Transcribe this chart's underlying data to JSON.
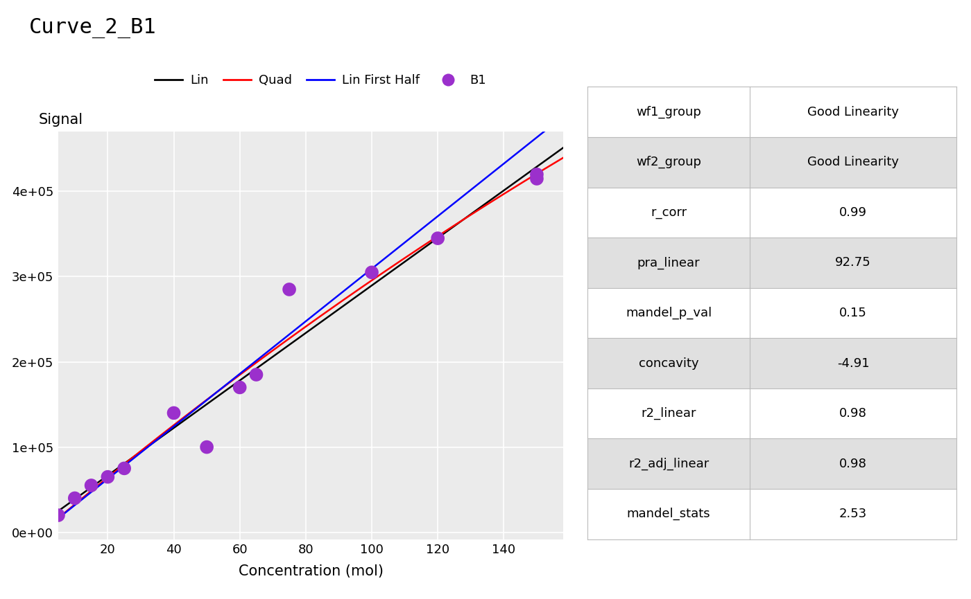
{
  "title": "Curve_2_B1",
  "xlabel": "Concentration (mol)",
  "ylabel": "Signal",
  "point_color": "#9B30CC",
  "point_size": 200,
  "concentrations": [
    5,
    10,
    15,
    20,
    25,
    40,
    50,
    60,
    65,
    75,
    100,
    120,
    150,
    150
  ],
  "signals": [
    20000,
    40000,
    55000,
    65000,
    75000,
    140000,
    100000,
    170000,
    185000,
    285000,
    305000,
    345000,
    415000,
    420000
  ],
  "xlim": [
    5,
    158
  ],
  "ylim": [
    -8000,
    470000
  ],
  "xticks": [
    20,
    40,
    60,
    80,
    100,
    120,
    140
  ],
  "ytick_labels": [
    "0e+00",
    "1e+05",
    "2e+05",
    "3e+05",
    "4e+05"
  ],
  "ytick_vals": [
    0,
    100000,
    200000,
    300000,
    400000
  ],
  "bg_color": "#EBEBEB",
  "grid_color": "white",
  "lin_color": "black",
  "quad_color": "red",
  "lin_first_half_color": "blue",
  "table_stats": [
    [
      "wf1_group",
      "Good Linearity"
    ],
    [
      "wf2_group",
      "Good Linearity"
    ],
    [
      "r_corr",
      "0.99"
    ],
    [
      "pra_linear",
      "92.75"
    ],
    [
      "mandel_p_val",
      "0.15"
    ],
    [
      "concavity",
      "-4.91"
    ],
    [
      "r2_linear",
      "0.98"
    ],
    [
      "r2_adj_linear",
      "0.98"
    ],
    [
      "mandel_stats",
      "2.53"
    ]
  ],
  "table_row_colors": [
    "white",
    "#E0E0E0",
    "white",
    "#E0E0E0",
    "white",
    "#E0E0E0",
    "white",
    "#E0E0E0",
    "white"
  ]
}
